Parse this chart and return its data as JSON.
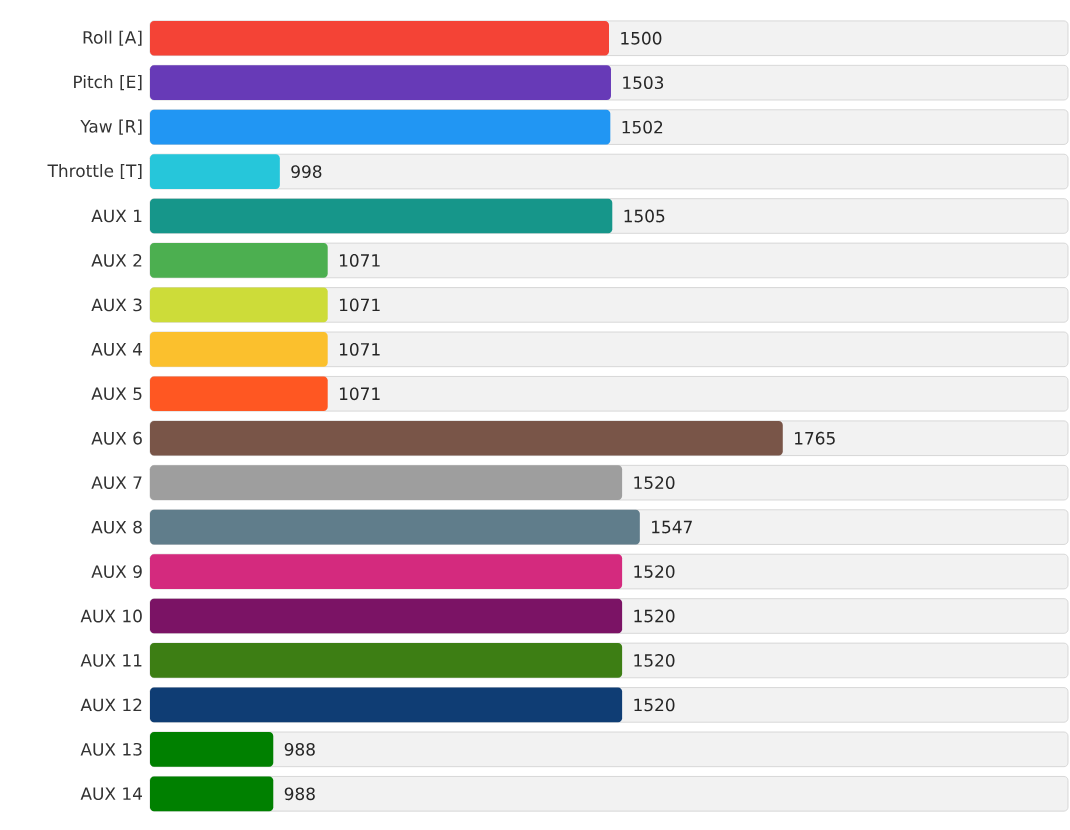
{
  "chart_data": {
    "type": "bar",
    "orientation": "horizontal",
    "categories": [
      "Roll [A]",
      "Pitch [E]",
      "Yaw [R]",
      "Throttle [T]",
      "AUX 1",
      "AUX 2",
      "AUX 3",
      "AUX 4",
      "AUX 5",
      "AUX 6",
      "AUX 7",
      "AUX 8",
      "AUX 9",
      "AUX 10",
      "AUX 11",
      "AUX 12",
      "AUX 13",
      "AUX 14"
    ],
    "values": [
      1500,
      1503,
      1502,
      998,
      1505,
      1071,
      1071,
      1071,
      1071,
      1765,
      1520,
      1547,
      1520,
      1520,
      1520,
      1520,
      988,
      988
    ],
    "colors": [
      "#f44336",
      "#673ab7",
      "#2196f3",
      "#26c6da",
      "#16968a",
      "#4caf50",
      "#cddc39",
      "#fbc02d",
      "#ff5722",
      "#795548",
      "#9e9e9e",
      "#607d8b",
      "#d42a7e",
      "#7b1365",
      "#3d7e14",
      "#0f3d74",
      "#008000",
      "#008000"
    ],
    "xlim": [
      800,
      2200
    ],
    "tick_labels": "y",
    "data_labels": true
  }
}
